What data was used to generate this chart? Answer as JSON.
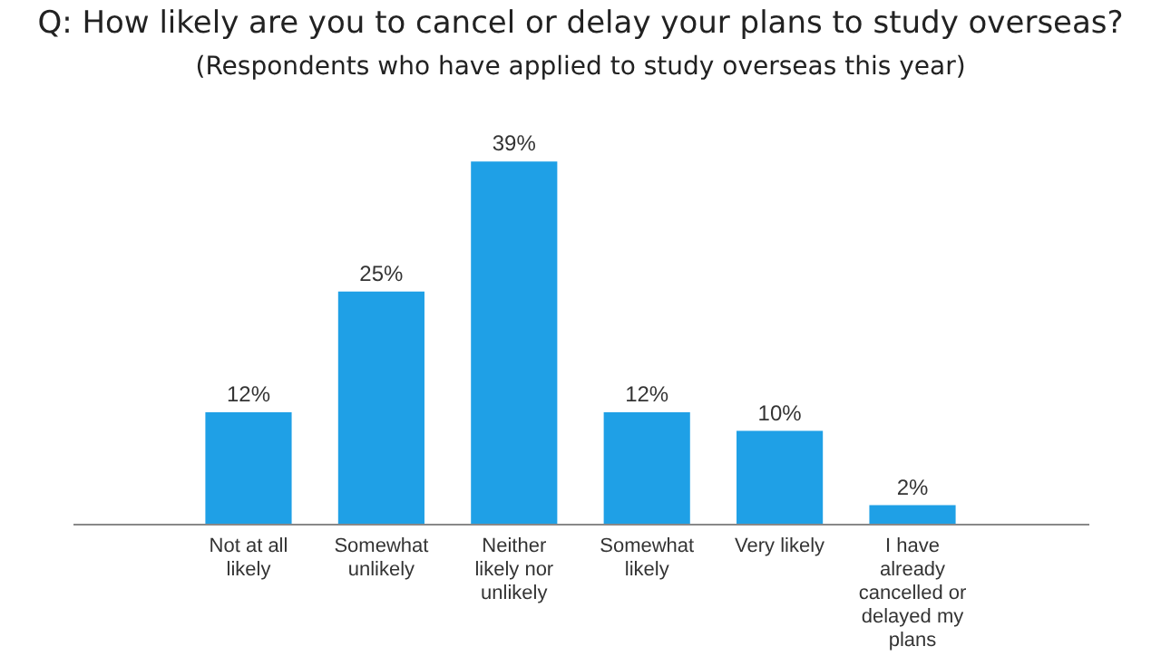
{
  "chart_data": {
    "type": "bar",
    "title": "Q: How likely are you to cancel or delay your plans to study overseas?",
    "subtitle": "(Respondents who have applied to study overseas this year)",
    "categories": [
      "Not at all likely",
      "Somewhat unlikely",
      "Neither likely nor unlikely",
      "Somewhat likely",
      "Very likely",
      "I have already cancelled or delayed my plans"
    ],
    "values": [
      12,
      25,
      39,
      12,
      10,
      2
    ],
    "value_labels": [
      "12%",
      "25%",
      "39%",
      "12%",
      "10%",
      "2%"
    ],
    "color": "#1fa0e6",
    "grid": false
  }
}
